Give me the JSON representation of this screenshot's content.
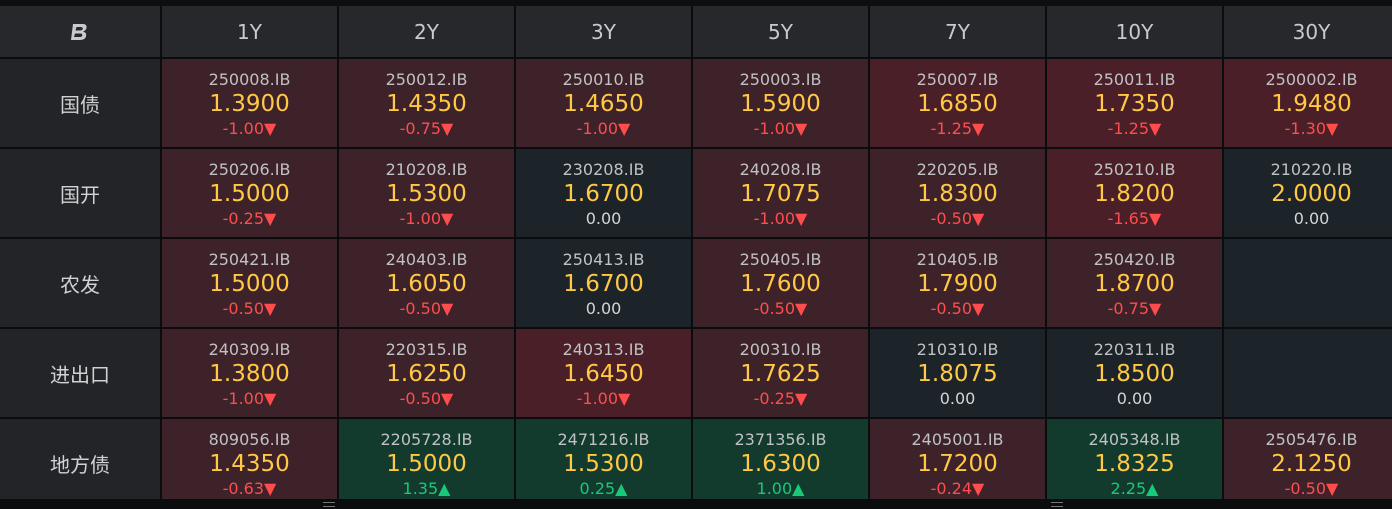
{
  "logo": "B",
  "columns": [
    "1Y",
    "2Y",
    "3Y",
    "5Y",
    "7Y",
    "10Y",
    "30Y"
  ],
  "rows": [
    {
      "label": "国债",
      "cells": [
        {
          "code": "250008.IB",
          "yield": "1.3900",
          "change": "-1.00▼",
          "dir": "down",
          "tone": "red"
        },
        {
          "code": "250012.IB",
          "yield": "1.4350",
          "change": "-0.75▼",
          "dir": "down",
          "tone": "red"
        },
        {
          "code": "250010.IB",
          "yield": "1.4650",
          "change": "-1.00▼",
          "dir": "down",
          "tone": "red"
        },
        {
          "code": "250003.IB",
          "yield": "1.5900",
          "change": "-1.00▼",
          "dir": "down",
          "tone": "red"
        },
        {
          "code": "250007.IB",
          "yield": "1.6850",
          "change": "-1.25▼",
          "dir": "down",
          "tone": "red2"
        },
        {
          "code": "250011.IB",
          "yield": "1.7350",
          "change": "-1.25▼",
          "dir": "down",
          "tone": "red2"
        },
        {
          "code": "2500002.IB",
          "yield": "1.9480",
          "change": "-1.30▼",
          "dir": "down",
          "tone": "red2"
        }
      ]
    },
    {
      "label": "国开",
      "cells": [
        {
          "code": "250206.IB",
          "yield": "1.5000",
          "change": "-0.25▼",
          "dir": "down",
          "tone": "red"
        },
        {
          "code": "210208.IB",
          "yield": "1.5300",
          "change": "-1.00▼",
          "dir": "down",
          "tone": "red"
        },
        {
          "code": "230208.IB",
          "yield": "1.6700",
          "change": "0.00",
          "dir": "flat",
          "tone": "dark"
        },
        {
          "code": "240208.IB",
          "yield": "1.7075",
          "change": "-1.00▼",
          "dir": "down",
          "tone": "red"
        },
        {
          "code": "220205.IB",
          "yield": "1.8300",
          "change": "-0.50▼",
          "dir": "down",
          "tone": "red"
        },
        {
          "code": "250210.IB",
          "yield": "1.8200",
          "change": "-1.65▼",
          "dir": "down",
          "tone": "red2"
        },
        {
          "code": "210220.IB",
          "yield": "2.0000",
          "change": "0.00",
          "dir": "flat",
          "tone": "dark"
        }
      ]
    },
    {
      "label": "农发",
      "cells": [
        {
          "code": "250421.IB",
          "yield": "1.5000",
          "change": "-0.50▼",
          "dir": "down",
          "tone": "red"
        },
        {
          "code": "240403.IB",
          "yield": "1.6050",
          "change": "-0.50▼",
          "dir": "down",
          "tone": "red"
        },
        {
          "code": "250413.IB",
          "yield": "1.6700",
          "change": "0.00",
          "dir": "flat",
          "tone": "dark"
        },
        {
          "code": "250405.IB",
          "yield": "1.7600",
          "change": "-0.50▼",
          "dir": "down",
          "tone": "red"
        },
        {
          "code": "210405.IB",
          "yield": "1.7900",
          "change": "-0.50▼",
          "dir": "down",
          "tone": "red"
        },
        {
          "code": "250420.IB",
          "yield": "1.8700",
          "change": "-0.75▼",
          "dir": "down",
          "tone": "red"
        },
        null
      ]
    },
    {
      "label": "进出口",
      "cells": [
        {
          "code": "240309.IB",
          "yield": "1.3800",
          "change": "-1.00▼",
          "dir": "down",
          "tone": "red"
        },
        {
          "code": "220315.IB",
          "yield": "1.6250",
          "change": "-0.50▼",
          "dir": "down",
          "tone": "red"
        },
        {
          "code": "240313.IB",
          "yield": "1.6450",
          "change": "-1.00▼",
          "dir": "down",
          "tone": "red2"
        },
        {
          "code": "200310.IB",
          "yield": "1.7625",
          "change": "-0.25▼",
          "dir": "down",
          "tone": "red"
        },
        {
          "code": "210310.IB",
          "yield": "1.8075",
          "change": "0.00",
          "dir": "flat",
          "tone": "dark"
        },
        {
          "code": "220311.IB",
          "yield": "1.8500",
          "change": "0.00",
          "dir": "flat",
          "tone": "dark"
        },
        null
      ]
    },
    {
      "label": "地方债",
      "cells": [
        {
          "code": "809056.IB",
          "yield": "1.4350",
          "change": "-0.63▼",
          "dir": "down",
          "tone": "red"
        },
        {
          "code": "2205728.IB",
          "yield": "1.5000",
          "change": "1.35▲",
          "dir": "up",
          "tone": "green"
        },
        {
          "code": "2471216.IB",
          "yield": "1.5300",
          "change": "0.25▲",
          "dir": "up",
          "tone": "green"
        },
        {
          "code": "2371356.IB",
          "yield": "1.6300",
          "change": "1.00▲",
          "dir": "up",
          "tone": "green"
        },
        {
          "code": "2405001.IB",
          "yield": "1.7200",
          "change": "-0.24▼",
          "dir": "down",
          "tone": "red"
        },
        {
          "code": "2405348.IB",
          "yield": "1.8325",
          "change": "2.25▲",
          "dir": "up",
          "tone": "green"
        },
        {
          "code": "2505476.IB",
          "yield": "2.1250",
          "change": "-0.50▼",
          "dir": "down",
          "tone": "red"
        }
      ]
    }
  ]
}
